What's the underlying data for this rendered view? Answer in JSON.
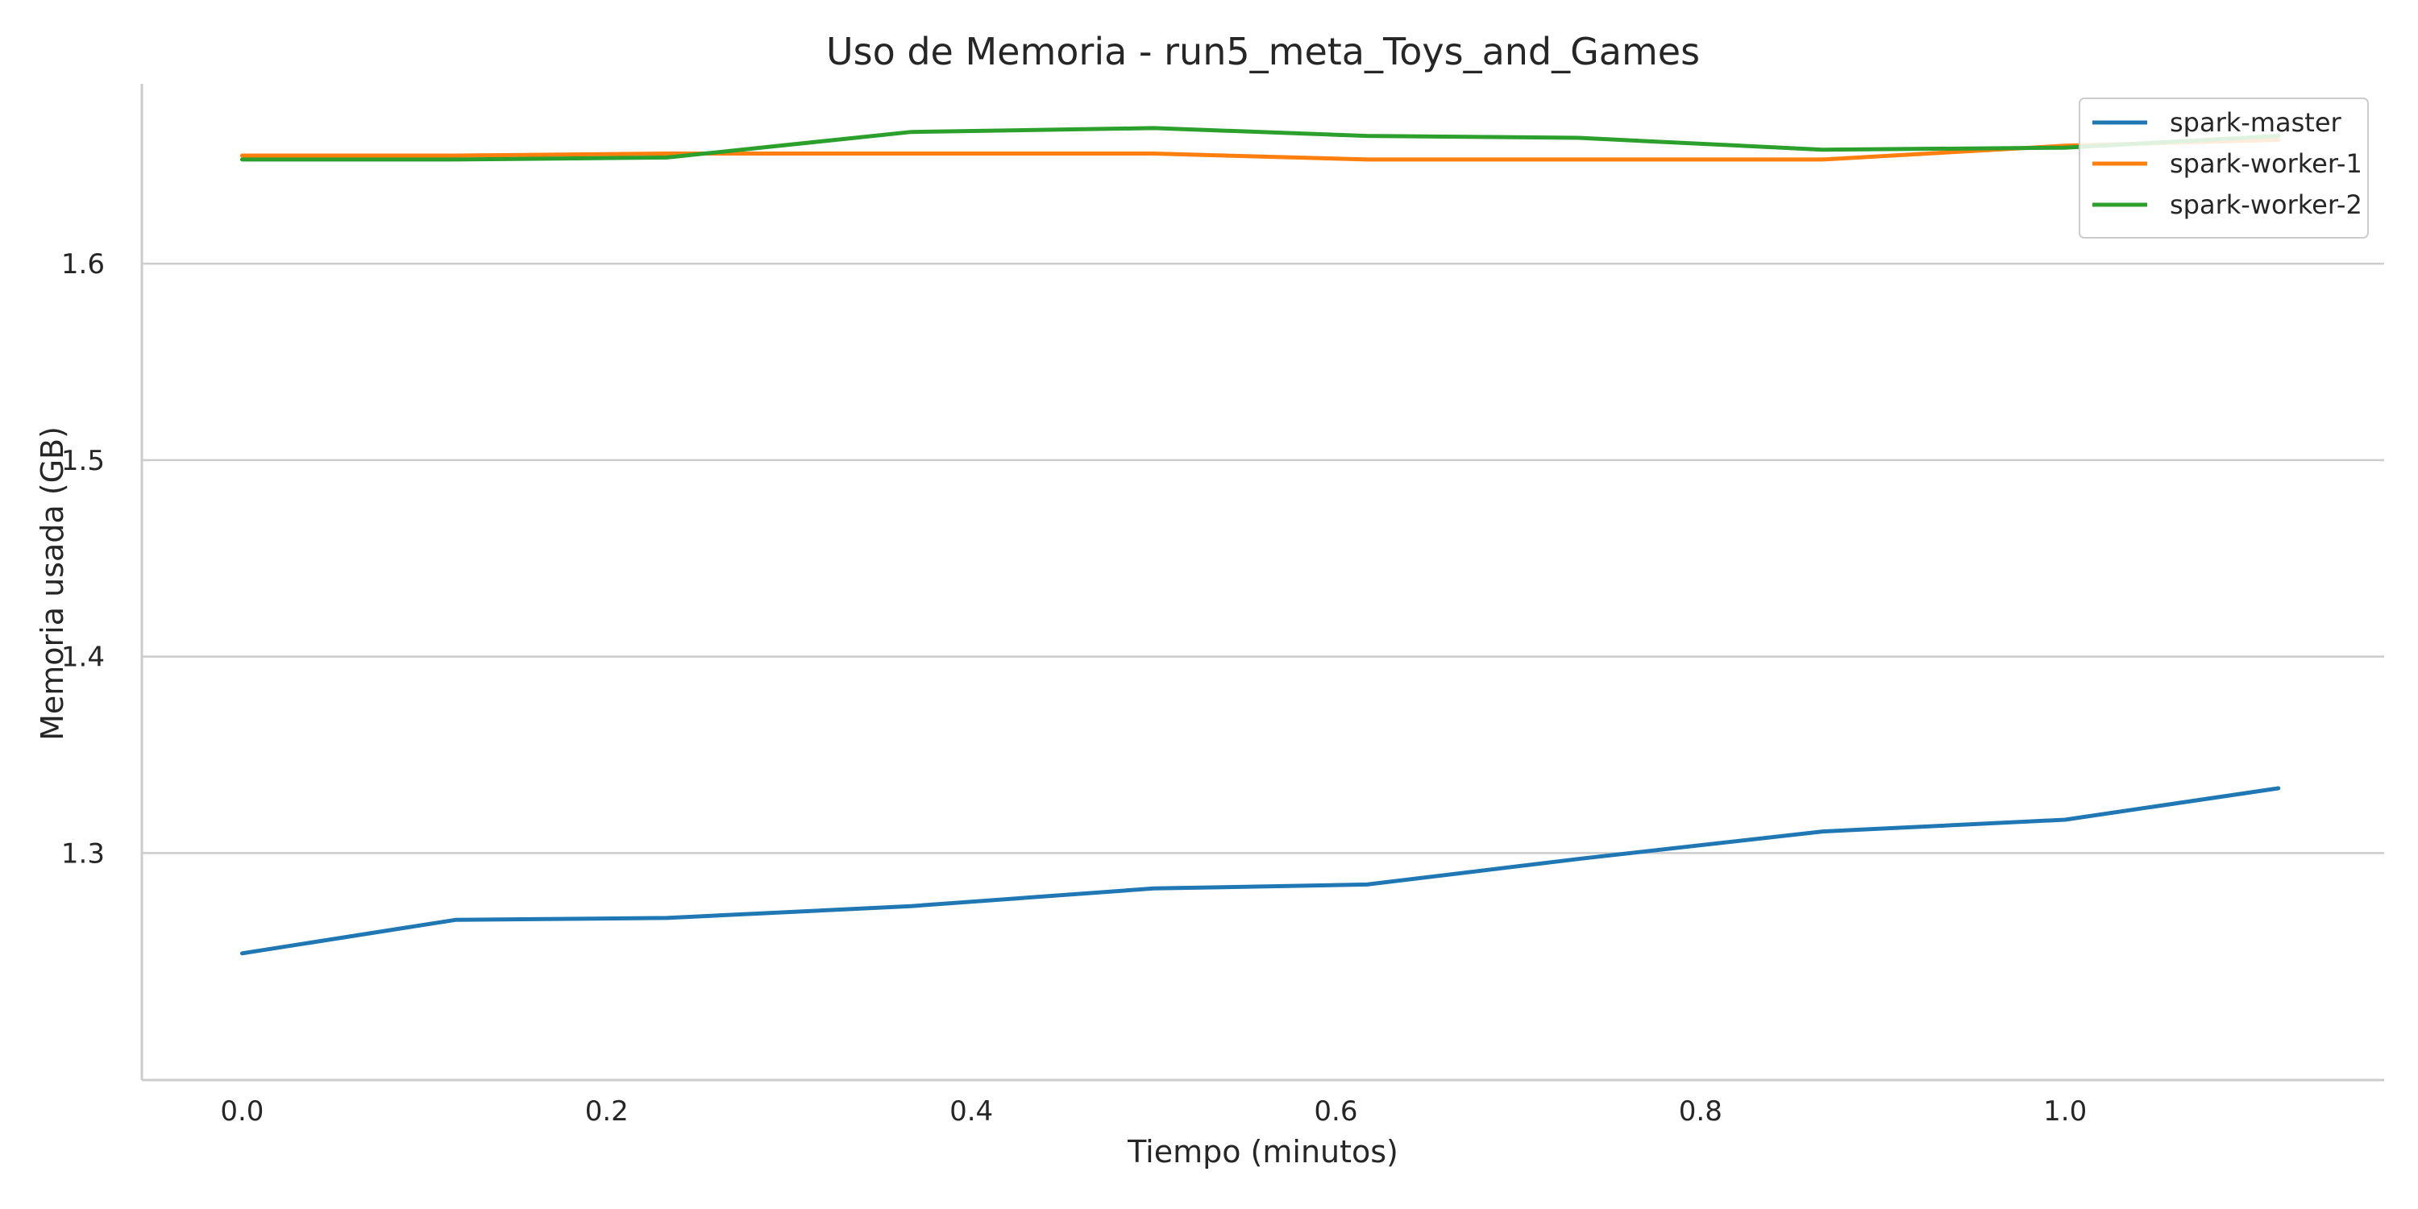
{
  "chart_data": {
    "type": "line",
    "title": "Uso de Memoria - run5_meta_Toys_and_Games",
    "xlabel": "Tiempo (minutos)",
    "ylabel": "Memoria usada (GB)",
    "xlim": [
      -0.055,
      1.175
    ],
    "ylim": [
      1.1845,
      1.6915
    ],
    "xticks": [
      0.0,
      0.2,
      0.4,
      0.6,
      0.8,
      1.0
    ],
    "xtick_labels": [
      "0.0",
      "0.2",
      "0.4",
      "0.6",
      "0.8",
      "1.0"
    ],
    "yticks": [
      1.3,
      1.4,
      1.5,
      1.6
    ],
    "ytick_labels": [
      "1.3",
      "1.4",
      "1.5",
      "1.6"
    ],
    "grid": "horizontal",
    "legend_position": "top-right",
    "x": [
      0.0,
      0.117,
      0.233,
      0.367,
      0.5,
      0.617,
      0.733,
      0.867,
      1.0,
      1.117
    ],
    "series": [
      {
        "name": "spark-master",
        "color": "#1f77b4",
        "values": [
          1.249,
          1.266,
          1.267,
          1.273,
          1.282,
          1.284,
          1.297,
          1.311,
          1.317,
          1.333
        ]
      },
      {
        "name": "spark-worker-1",
        "color": "#ff7f0e",
        "values": [
          1.655,
          1.655,
          1.656,
          1.656,
          1.656,
          1.653,
          1.653,
          1.653,
          1.66,
          1.663
        ]
      },
      {
        "name": "spark-worker-2",
        "color": "#2ca02c",
        "values": [
          1.653,
          1.653,
          1.654,
          1.667,
          1.669,
          1.665,
          1.664,
          1.658,
          1.659,
          1.665
        ]
      }
    ]
  }
}
